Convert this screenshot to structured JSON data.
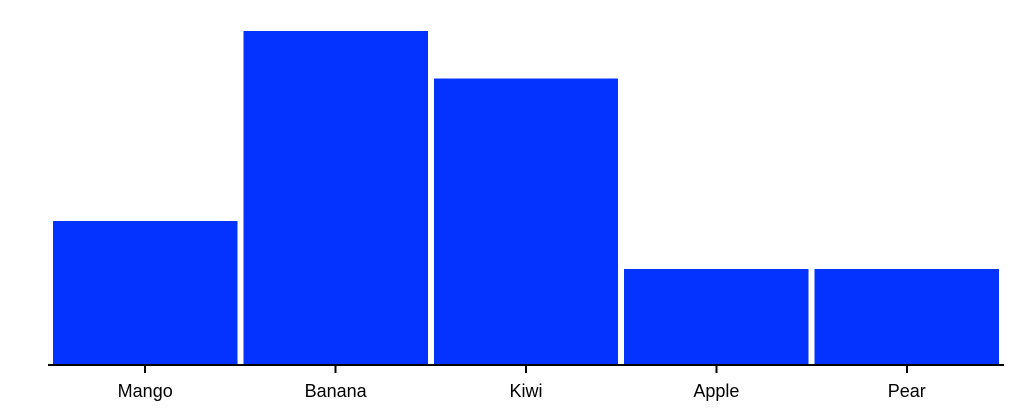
{
  "colors": {
    "bar": "#0433ff",
    "axis": "#000000",
    "background": "#ffffff"
  },
  "chart_data": {
    "type": "bar",
    "title": "",
    "xlabel": "",
    "ylabel": "",
    "categories": [
      "Mango",
      "Banana",
      "Kiwi",
      "Apple",
      "Pear"
    ],
    "values": [
      3,
      7,
      6,
      2,
      2
    ],
    "ylim": [
      0,
      7.5
    ],
    "grid": false,
    "legend": "none",
    "y_axis_visible": false
  }
}
